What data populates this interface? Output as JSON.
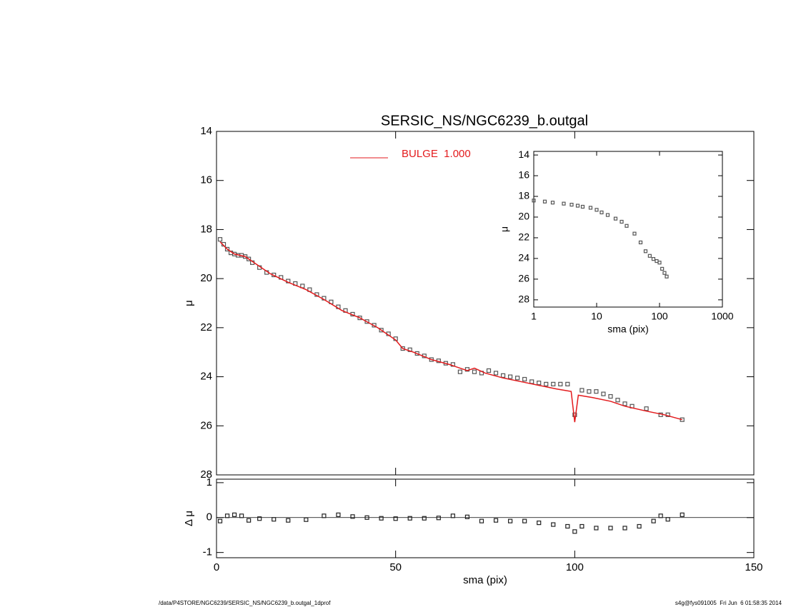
{
  "chart_data": [
    {
      "type": "scatter",
      "title": "SERSIC_NS/NGC6239_b.outgal",
      "y_label": "μ",
      "xlim": [
        0,
        150
      ],
      "xticks": [
        0,
        50,
        100,
        150
      ],
      "ylim": [
        28,
        14
      ],
      "yticks": [
        14,
        16,
        18,
        20,
        22,
        24,
        26,
        28
      ],
      "legend": "top",
      "series": [
        {
          "type": "scatter",
          "color": "#555555",
          "x": [
            1,
            2,
            3,
            4,
            5,
            6,
            7,
            8,
            9,
            10,
            12,
            14,
            16,
            18,
            20,
            22,
            24,
            26,
            28,
            30,
            32,
            34,
            36,
            38,
            40,
            42,
            44,
            46,
            48,
            50,
            52,
            54,
            56,
            58,
            60,
            62,
            64,
            66,
            68,
            70,
            72,
            74,
            76,
            78,
            80,
            82,
            84,
            86,
            88,
            90,
            92,
            94,
            96,
            98,
            100,
            102,
            104,
            106,
            108,
            110,
            112,
            114,
            116,
            120,
            124,
            126,
            130
          ],
          "values": [
            18.4,
            18.6,
            18.8,
            18.95,
            19.0,
            19.05,
            19.05,
            19.1,
            19.2,
            19.35,
            19.55,
            19.75,
            19.85,
            19.95,
            20.1,
            20.2,
            20.3,
            20.45,
            20.65,
            20.8,
            20.95,
            21.15,
            21.3,
            21.45,
            21.6,
            21.75,
            21.9,
            22.1,
            22.25,
            22.45,
            22.85,
            22.9,
            23.05,
            23.15,
            23.3,
            23.35,
            23.45,
            23.5,
            23.8,
            23.7,
            23.8,
            23.85,
            23.75,
            23.85,
            23.95,
            24.0,
            24.05,
            24.1,
            24.2,
            24.25,
            24.3,
            24.3,
            24.3,
            24.3,
            25.55,
            24.55,
            24.6,
            24.6,
            24.7,
            24.8,
            24.95,
            25.1,
            25.2,
            25.3,
            25.55,
            25.55,
            25.75
          ]
        },
        {
          "type": "line",
          "name": "BULGE  1.000",
          "color": "#e31a1c",
          "x": [
            1,
            3,
            5,
            8,
            10,
            15,
            20,
            25,
            30,
            35,
            40,
            45,
            50,
            52,
            55,
            60,
            65,
            70,
            72,
            75,
            80,
            85,
            90,
            95,
            99,
            100,
            101,
            105,
            110,
            114,
            120,
            125,
            130
          ],
          "values": [
            18.5,
            18.8,
            19.0,
            19.1,
            19.3,
            19.8,
            20.15,
            20.45,
            20.85,
            21.3,
            21.6,
            22.0,
            22.5,
            22.85,
            23.0,
            23.3,
            23.5,
            23.75,
            23.65,
            23.85,
            24.05,
            24.2,
            24.35,
            24.5,
            24.6,
            25.85,
            24.75,
            24.85,
            25.0,
            25.2,
            25.4,
            25.55,
            25.75
          ]
        }
      ]
    },
    {
      "type": "scatter",
      "x_label": "sma (pix)",
      "y_label": "Δ μ",
      "xlim": [
        0,
        150
      ],
      "xticks": [
        0,
        50,
        100,
        150
      ],
      "ylim": [
        -1.15,
        1.1
      ],
      "yticks": [
        -1,
        0,
        1
      ],
      "series": [
        {
          "type": "scatter",
          "color": "#222222",
          "x": [
            1,
            3,
            5,
            7,
            9,
            12,
            16,
            20,
            25,
            30,
            34,
            38,
            42,
            46,
            50,
            54,
            58,
            62,
            66,
            70,
            74,
            78,
            82,
            86,
            90,
            94,
            98,
            100,
            102,
            106,
            110,
            114,
            118,
            122,
            124,
            126,
            130
          ],
          "values": [
            -0.1,
            0.05,
            0.08,
            0.05,
            -0.08,
            -0.03,
            -0.05,
            -0.08,
            -0.06,
            0.05,
            0.08,
            0.03,
            0.0,
            -0.02,
            -0.03,
            -0.02,
            -0.02,
            -0.01,
            0.05,
            0.02,
            -0.1,
            -0.08,
            -0.1,
            -0.1,
            -0.15,
            -0.2,
            -0.25,
            -0.4,
            -0.25,
            -0.3,
            -0.3,
            -0.3,
            -0.25,
            -0.1,
            0.05,
            -0.05,
            0.08
          ]
        }
      ]
    },
    {
      "type": "scatter",
      "x_label": "sma (pix)",
      "y_label": "μ",
      "xlog": true,
      "xlim": [
        1,
        1000
      ],
      "xticks": [
        1,
        10,
        100,
        1000
      ],
      "ylim": [
        28.7,
        13.65
      ],
      "yticks": [
        14,
        16,
        18,
        20,
        22,
        24,
        26,
        28
      ],
      "series": [
        {
          "type": "scatter",
          "color": "#555555",
          "x": [
            1,
            1.5,
            2,
            3,
            4,
            5,
            6,
            8,
            10,
            12,
            15,
            20,
            25,
            30,
            40,
            50,
            60,
            70,
            80,
            90,
            100,
            110,
            120,
            130
          ],
          "values": [
            18.4,
            18.5,
            18.6,
            18.7,
            18.8,
            18.9,
            19.0,
            19.1,
            19.3,
            19.55,
            19.8,
            20.15,
            20.45,
            20.85,
            21.6,
            22.45,
            23.3,
            23.75,
            24.05,
            24.25,
            24.4,
            25.0,
            25.4,
            25.75
          ]
        }
      ]
    }
  ],
  "footer": {
    "left": "/data/P4STORE/NGC6239/SERSIC_NS/NGC6239_b.outgal_1dprof",
    "right": "s4g@fys091005  Fri Jun  6 01:58:35 2014"
  }
}
